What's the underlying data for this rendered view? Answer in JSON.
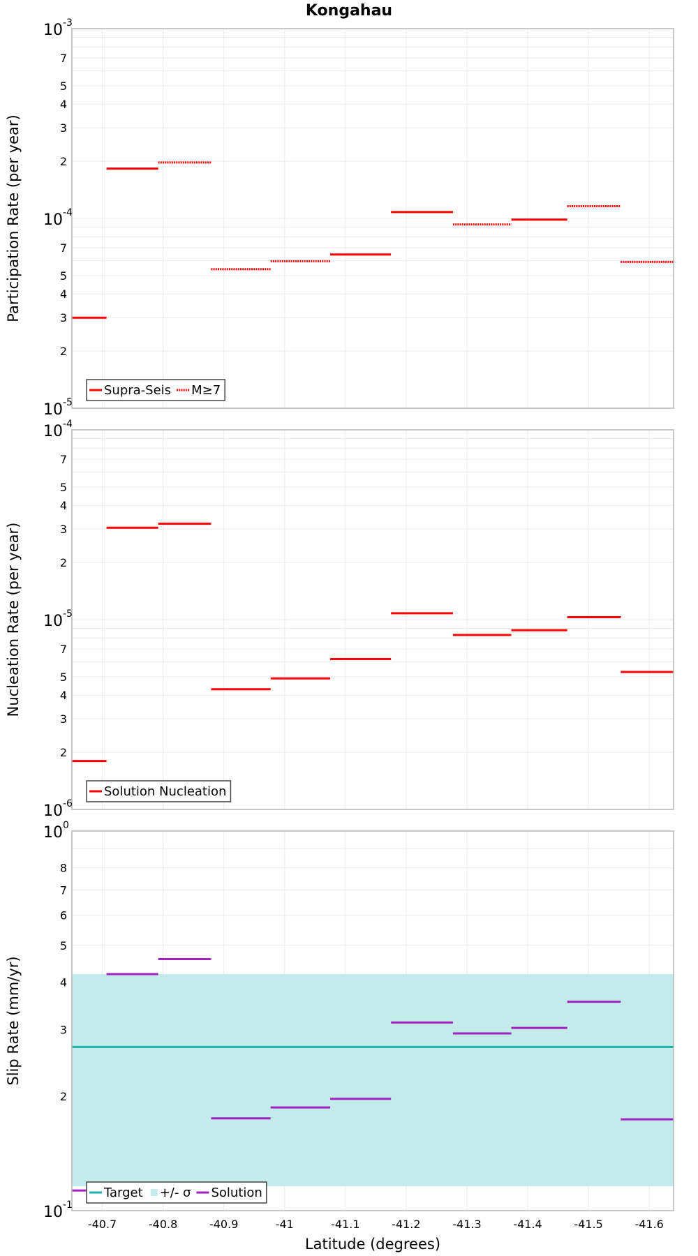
{
  "chart_data": [
    {
      "type": "line",
      "title": "Kongahau",
      "xlabel": "",
      "ylabel": "Participation Rate (per year)",
      "yscale": "log",
      "ylim": [
        1e-05,
        0.001
      ],
      "xlim": [
        -40.65,
        -41.64
      ],
      "grid": true,
      "legend": "bottom-left",
      "y_tick_labels": [
        {
          "value": 0.001,
          "base": "10",
          "exp": "-3"
        },
        {
          "value": 0.0007,
          "label": "7"
        },
        {
          "value": 0.0005,
          "label": "5"
        },
        {
          "value": 0.0004,
          "label": "4"
        },
        {
          "value": 0.0003,
          "label": "3"
        },
        {
          "value": 0.0002,
          "label": "2"
        },
        {
          "value": 0.0001,
          "base": "10",
          "exp": "-4"
        },
        {
          "value": 7e-05,
          "label": "7"
        },
        {
          "value": 5e-05,
          "label": "5"
        },
        {
          "value": 4e-05,
          "label": "4"
        },
        {
          "value": 3e-05,
          "label": "3"
        },
        {
          "value": 2e-05,
          "label": "2"
        },
        {
          "value": 1e-05,
          "base": "10",
          "exp": "-5"
        }
      ],
      "series": [
        {
          "name": "Supra-Seis",
          "color": "#ff0000",
          "style": "solid",
          "segments": [
            {
              "x": [
                -40.65,
                -40.707
              ],
              "y": 3e-05
            },
            {
              "x": [
                -40.707,
                -40.792
              ],
              "y": 0.000183
            },
            {
              "x": [
                -41.075,
                -41.175
              ],
              "y": 6.45e-05
            },
            {
              "x": [
                -41.175,
                -41.277
              ],
              "y": 0.000108
            },
            {
              "x": [
                -41.373,
                -41.465
              ],
              "y": 9.85e-05
            }
          ]
        },
        {
          "name": "M≥7",
          "color": "#ff0000",
          "style": "dotted",
          "segments": [
            {
              "x": [
                -40.792,
                -40.879
              ],
              "y": 0.000197
            },
            {
              "x": [
                -40.879,
                -40.977
              ],
              "y": 5.4e-05
            },
            {
              "x": [
                -40.977,
                -41.075
              ],
              "y": 5.95e-05
            },
            {
              "x": [
                -41.277,
                -41.373
              ],
              "y": 9.3e-05
            },
            {
              "x": [
                -41.465,
                -41.553
              ],
              "y": 0.000116
            },
            {
              "x": [
                -41.553,
                -41.64
              ],
              "y": 5.9e-05
            }
          ]
        }
      ]
    },
    {
      "type": "line",
      "title": "",
      "xlabel": "",
      "ylabel": "Nucleation Rate (per year)",
      "yscale": "log",
      "ylim": [
        1e-06,
        0.0001
      ],
      "xlim": [
        -40.65,
        -41.64
      ],
      "grid": true,
      "legend": "bottom-left",
      "y_tick_labels": [
        {
          "value": 0.0001,
          "base": "10",
          "exp": "-4"
        },
        {
          "value": 7e-05,
          "label": "7"
        },
        {
          "value": 5e-05,
          "label": "5"
        },
        {
          "value": 4e-05,
          "label": "4"
        },
        {
          "value": 3e-05,
          "label": "3"
        },
        {
          "value": 2e-05,
          "label": "2"
        },
        {
          "value": 1e-05,
          "base": "10",
          "exp": "-5"
        },
        {
          "value": 7e-06,
          "label": "7"
        },
        {
          "value": 5e-06,
          "label": "5"
        },
        {
          "value": 4e-06,
          "label": "4"
        },
        {
          "value": 3e-06,
          "label": "3"
        },
        {
          "value": 2e-06,
          "label": "2"
        },
        {
          "value": 1e-06,
          "base": "10",
          "exp": "-6"
        }
      ],
      "series": [
        {
          "name": "Solution Nucleation",
          "color": "#ff0000",
          "style": "solid",
          "segments": [
            {
              "x": [
                -40.65,
                -40.707
              ],
              "y": 1.8e-06
            },
            {
              "x": [
                -40.707,
                -40.792
              ],
              "y": 3.05e-05
            },
            {
              "x": [
                -40.792,
                -40.879
              ],
              "y": 3.2e-05
            },
            {
              "x": [
                -40.879,
                -40.977
              ],
              "y": 4.3e-06
            },
            {
              "x": [
                -40.977,
                -41.075
              ],
              "y": 4.9e-06
            },
            {
              "x": [
                -41.075,
                -41.175
              ],
              "y": 6.2e-06
            },
            {
              "x": [
                -41.175,
                -41.277
              ],
              "y": 1.08e-05
            },
            {
              "x": [
                -41.277,
                -41.373
              ],
              "y": 8.3e-06
            },
            {
              "x": [
                -41.373,
                -41.465
              ],
              "y": 8.8e-06
            },
            {
              "x": [
                -41.465,
                -41.553
              ],
              "y": 1.03e-05
            },
            {
              "x": [
                -41.553,
                -41.64
              ],
              "y": 5.3e-06
            }
          ]
        }
      ]
    },
    {
      "type": "line",
      "title": "",
      "xlabel": "Latitude (degrees)",
      "ylabel": "Slip Rate (mm/yr)",
      "yscale": "log",
      "ylim": [
        0.1,
        1
      ],
      "xlim": [
        -40.65,
        -41.64
      ],
      "grid": true,
      "legend": "bottom-left",
      "y_tick_labels": [
        {
          "value": 1,
          "base": "10",
          "exp": "0"
        },
        {
          "value": 0.8,
          "label": "8"
        },
        {
          "value": 0.7,
          "label": "7"
        },
        {
          "value": 0.6,
          "label": "6"
        },
        {
          "value": 0.5,
          "label": "5"
        },
        {
          "value": 0.4,
          "label": "4"
        },
        {
          "value": 0.3,
          "label": "3"
        },
        {
          "value": 0.2,
          "label": "2"
        },
        {
          "value": 0.1,
          "base": "10",
          "exp": "-1"
        }
      ],
      "x_tick_labels": [
        "-40.7",
        "-40.8",
        "-40.9",
        "-41",
        "-41.1",
        "-41.2",
        "-41.3",
        "-41.4",
        "-41.5",
        "-41.6"
      ],
      "x_ticks": [
        -40.7,
        -40.8,
        -40.9,
        -41.0,
        -41.1,
        -41.2,
        -41.3,
        -41.4,
        -41.5,
        -41.6
      ],
      "band": {
        "name": "+/- σ",
        "color": "#c2ebea",
        "y": [
          0.116,
          0.42
        ]
      },
      "series": [
        {
          "name": "Target",
          "color": "#20b2aa",
          "style": "solid",
          "segments": [
            {
              "x": [
                -40.65,
                -41.64
              ],
              "y": 0.27
            }
          ]
        },
        {
          "name": "Solution",
          "color": "#a020c0",
          "style": "solid",
          "segments": [
            {
              "x": [
                -40.65,
                -40.707
              ],
              "y": 0.113
            },
            {
              "x": [
                -40.707,
                -40.792
              ],
              "y": 0.42
            },
            {
              "x": [
                -40.792,
                -40.879
              ],
              "y": 0.46
            },
            {
              "x": [
                -40.879,
                -40.977
              ],
              "y": 0.175
            },
            {
              "x": [
                -40.977,
                -41.075
              ],
              "y": 0.187
            },
            {
              "x": [
                -41.075,
                -41.175
              ],
              "y": 0.197
            },
            {
              "x": [
                -41.175,
                -41.277
              ],
              "y": 0.313
            },
            {
              "x": [
                -41.277,
                -41.373
              ],
              "y": 0.293
            },
            {
              "x": [
                -41.373,
                -41.465
              ],
              "y": 0.303
            },
            {
              "x": [
                -41.465,
                -41.553
              ],
              "y": 0.355
            },
            {
              "x": [
                -41.553,
                -41.64
              ],
              "y": 0.174
            }
          ]
        }
      ]
    }
  ]
}
